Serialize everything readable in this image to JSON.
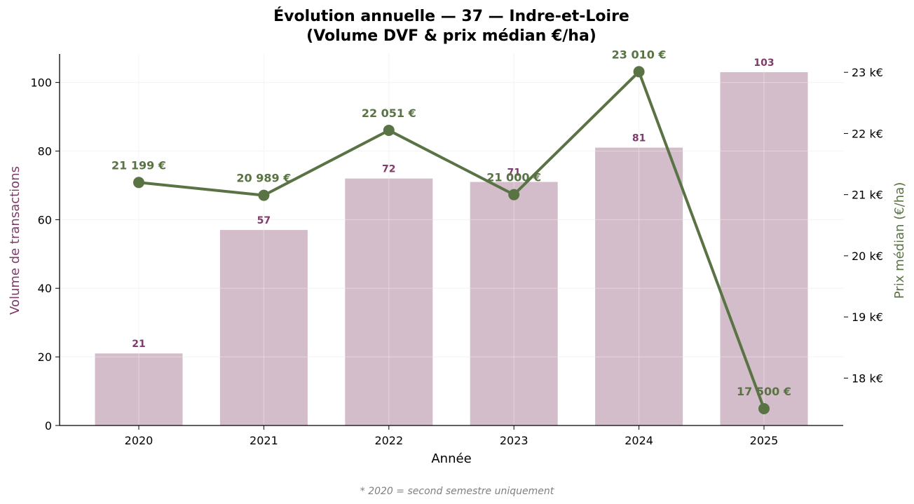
{
  "chart_data": {
    "type": "bar",
    "title_line1": "Évolution annuelle — 37 — Indre-et-Loire",
    "title_line2": "(Volume DVF & prix médian €/ha)",
    "xlabel": "Année",
    "ylabel_left": "Volume de transactions",
    "ylabel_right": "Prix médian (€/ha)",
    "categories": [
      "2020",
      "2021",
      "2022",
      "2023",
      "2024",
      "2025"
    ],
    "series": [
      {
        "type": "bar",
        "axis": "left",
        "values": [
          21,
          57,
          72,
          71,
          81,
          103
        ],
        "labels": [
          "21",
          "57",
          "72",
          "71",
          "81",
          "103"
        ]
      },
      {
        "type": "line",
        "axis": "right",
        "values": [
          21199,
          20989,
          22051,
          21000,
          23010,
          17500
        ],
        "labels": [
          "21 199 €",
          "20 989 €",
          "22 051 €",
          "21 000 €",
          "23 010 €",
          "17 500 €"
        ]
      }
    ],
    "ylim_left": [
      0,
      108.3
    ],
    "yticks_left": [
      0,
      20,
      40,
      60,
      80,
      100
    ],
    "ylim_right": [
      17225,
      23300
    ],
    "yticks_right": [
      18000,
      19000,
      20000,
      21000,
      22000,
      23000
    ],
    "yticklabels_right": [
      "18 k€",
      "19 k€",
      "20 k€",
      "21 k€",
      "22 k€",
      "23 k€"
    ],
    "grid": true,
    "footnote": "* 2020 = second semestre uniquement",
    "colors": {
      "bar": "#d4bdca",
      "bar_label": "#7d3c6a",
      "line": "#5a7345",
      "left_axis_label": "#7d3c6a",
      "right_axis_label": "#5a7345",
      "grid": "#eeeeee"
    }
  }
}
